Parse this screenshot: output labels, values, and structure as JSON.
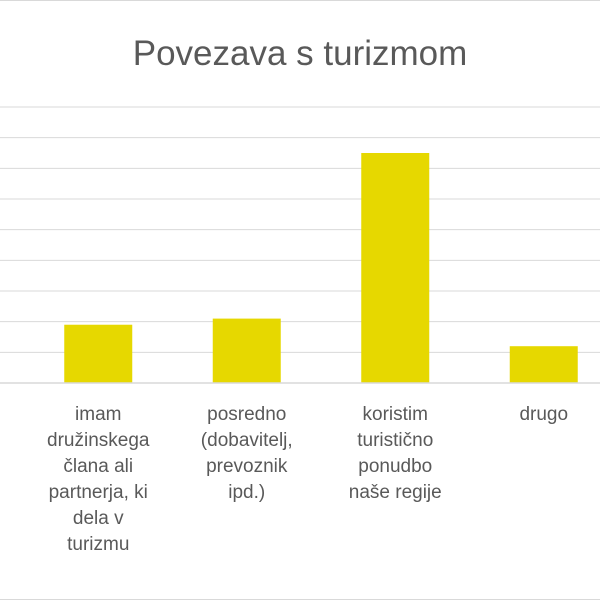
{
  "chart_data": {
    "type": "bar",
    "title": "Povezava s turizmom",
    "categories": [
      "imam družinskega člana ali partnerja, ki dela v turizmu",
      "posredno (dobavitelj, prevoznik ipd.)",
      "koristim turistično ponudbo naše regije",
      "drugo"
    ],
    "category_lines": [
      [
        "imam",
        "družinskega",
        "člana ali",
        "partnerja, ki",
        "dela v",
        "turizmu"
      ],
      [
        "posredno",
        "(dobavitelj,",
        "prevoznik",
        "ipd.)"
      ],
      [
        "koristim",
        "turistično",
        "ponudbo",
        "naše regije"
      ],
      [
        "drugo"
      ]
    ],
    "values": [
      1.9,
      2.1,
      7.5,
      1.2
    ],
    "ylim": [
      0,
      9
    ],
    "y_tick_step": 1,
    "grid": true,
    "y_tick_labels_visible": false,
    "legend": "none",
    "bar_color": "#e6d800",
    "grid_color": "#d9d9d9",
    "axis_color": "#d9d9d9",
    "text_color": "#595959"
  }
}
